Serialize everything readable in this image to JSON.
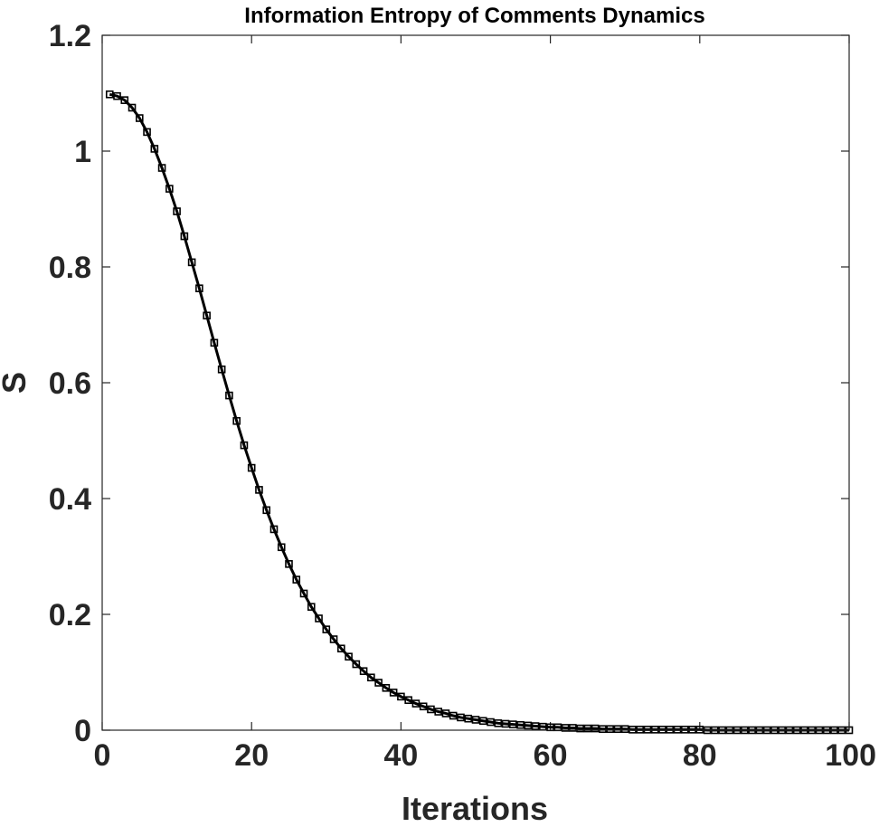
{
  "chart_data": {
    "type": "line",
    "title": "Information Entropy of Comments Dynamics",
    "xlabel": "Iterations",
    "ylabel": "S",
    "xlim": [
      0,
      100
    ],
    "ylim": [
      0,
      1.2
    ],
    "xticks": [
      0,
      20,
      40,
      60,
      80,
      100
    ],
    "xtick_labels": [
      "0",
      "20",
      "40",
      "60",
      "80",
      "100"
    ],
    "yticks": [
      0,
      0.2,
      0.4,
      0.6,
      0.8,
      1,
      1.2
    ],
    "ytick_labels": [
      "0",
      "0.2",
      "0.4",
      "0.6",
      "0.8",
      "1",
      "1.2"
    ],
    "grid": false,
    "marker": "square",
    "line_color": "#000000",
    "series": [
      {
        "x": [
          1,
          2,
          3,
          4,
          5,
          6,
          7,
          8,
          9,
          10,
          11,
          12,
          13,
          14,
          15,
          16,
          17,
          18,
          19,
          20,
          21,
          22,
          23,
          24,
          25,
          26,
          27,
          28,
          29,
          30,
          31,
          32,
          33,
          34,
          35,
          36,
          37,
          38,
          39,
          40,
          41,
          42,
          43,
          44,
          45,
          46,
          47,
          48,
          49,
          50,
          51,
          52,
          53,
          54,
          55,
          56,
          57,
          58,
          59,
          60,
          61,
          62,
          63,
          64,
          65,
          66,
          67,
          68,
          69,
          70,
          71,
          72,
          73,
          74,
          75,
          76,
          77,
          78,
          79,
          80,
          81,
          82,
          83,
          84,
          85,
          86,
          87,
          88,
          89,
          90,
          91,
          92,
          93,
          94,
          95,
          96,
          97,
          98,
          99,
          100
        ],
        "values": [
          1.098,
          1.095,
          1.088,
          1.075,
          1.057,
          1.033,
          1.004,
          0.971,
          0.935,
          0.896,
          0.853,
          0.808,
          0.763,
          0.716,
          0.669,
          0.623,
          0.578,
          0.534,
          0.492,
          0.453,
          0.415,
          0.38,
          0.347,
          0.316,
          0.287,
          0.26,
          0.236,
          0.213,
          0.193,
          0.174,
          0.157,
          0.141,
          0.127,
          0.114,
          0.102,
          0.091,
          0.082,
          0.073,
          0.065,
          0.058,
          0.052,
          0.046,
          0.041,
          0.036,
          0.032,
          0.029,
          0.025,
          0.022,
          0.02,
          0.018,
          0.016,
          0.014,
          0.012,
          0.011,
          0.01,
          0.009,
          0.008,
          0.007,
          0.006,
          0.005,
          0.005,
          0.004,
          0.004,
          0.003,
          0.003,
          0.003,
          0.002,
          0.002,
          0.002,
          0.002,
          0.001,
          0.001,
          0.001,
          0.001,
          0.001,
          0.001,
          0.001,
          0.001,
          0.001,
          0.001,
          0.0,
          0.0,
          0.0,
          0.0,
          0.0,
          0.0,
          0.0,
          0.0,
          0.0,
          0.0,
          0.0,
          0.0,
          0.0,
          0.0,
          0.0,
          0.0,
          0.0,
          0.0,
          0.0,
          0.0
        ]
      }
    ]
  }
}
